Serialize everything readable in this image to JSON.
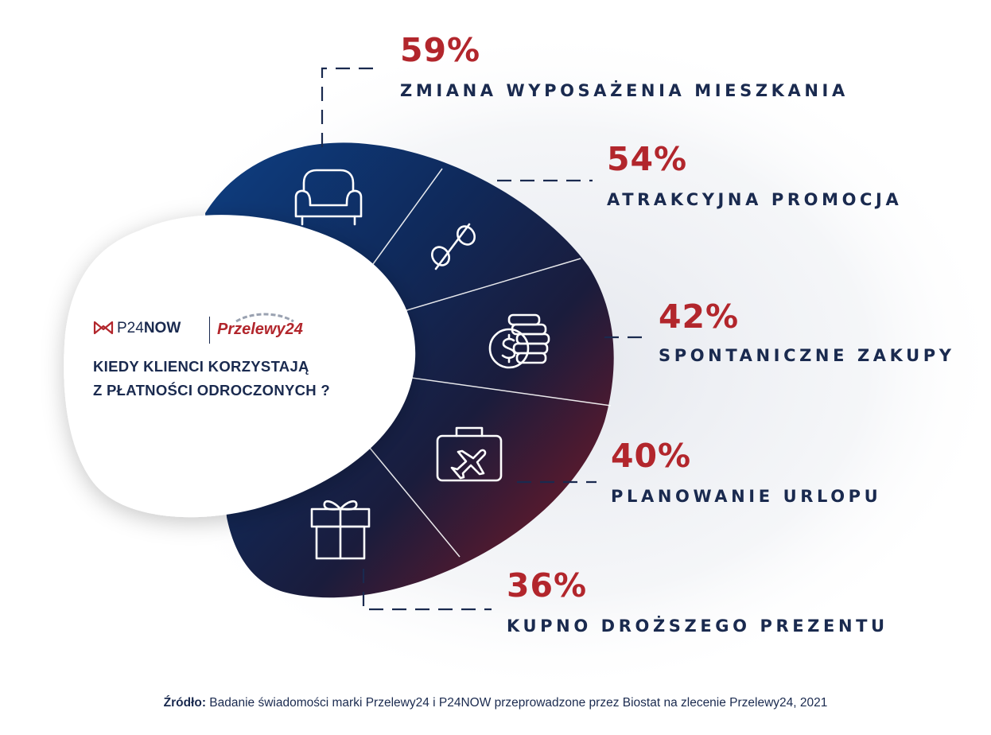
{
  "colors": {
    "navy": "#1a2a4f",
    "red": "#b2262c",
    "grad_blue": "#0e3f83",
    "grad_mid": "#131d3d",
    "grad_red": "#8c1721",
    "grey_mark": "#9aa2b1"
  },
  "brand": {
    "p24now_prefix": "P24",
    "p24now_suffix": "NOW",
    "przelewy24": "Przelewy24"
  },
  "question": {
    "line1": "KIEDY KLIENCI KORZYSTAJĄ",
    "line2": "Z PŁATNOŚCI ODROCZONYCH ?"
  },
  "chart_data": {
    "type": "infographic",
    "items": [
      {
        "value": "59%",
        "label": "ZMIANA WYPOSAŻENIA MIESZKANIA",
        "icon": "armchair-icon"
      },
      {
        "value": "54%",
        "label": "ATRAKCYJNA PROMOCJA",
        "icon": "percent-icon"
      },
      {
        "value": "42%",
        "label": "SPONTANICZNE ZAKUPY",
        "icon": "coins-icon"
      },
      {
        "value": "40%",
        "label": "PLANOWANIE URLOPU",
        "icon": "travel-suitcase-icon"
      },
      {
        "value": "36%",
        "label": "KUPNO DROŻSZEGO PREZENTU",
        "icon": "gift-icon"
      }
    ]
  },
  "source": {
    "prefix": "Źródło:",
    "text": " Badanie świadomości marki Przelewy24 i P24NOW przeprowadzone przez Biostat na zlecenie Przelewy24, 2021"
  }
}
